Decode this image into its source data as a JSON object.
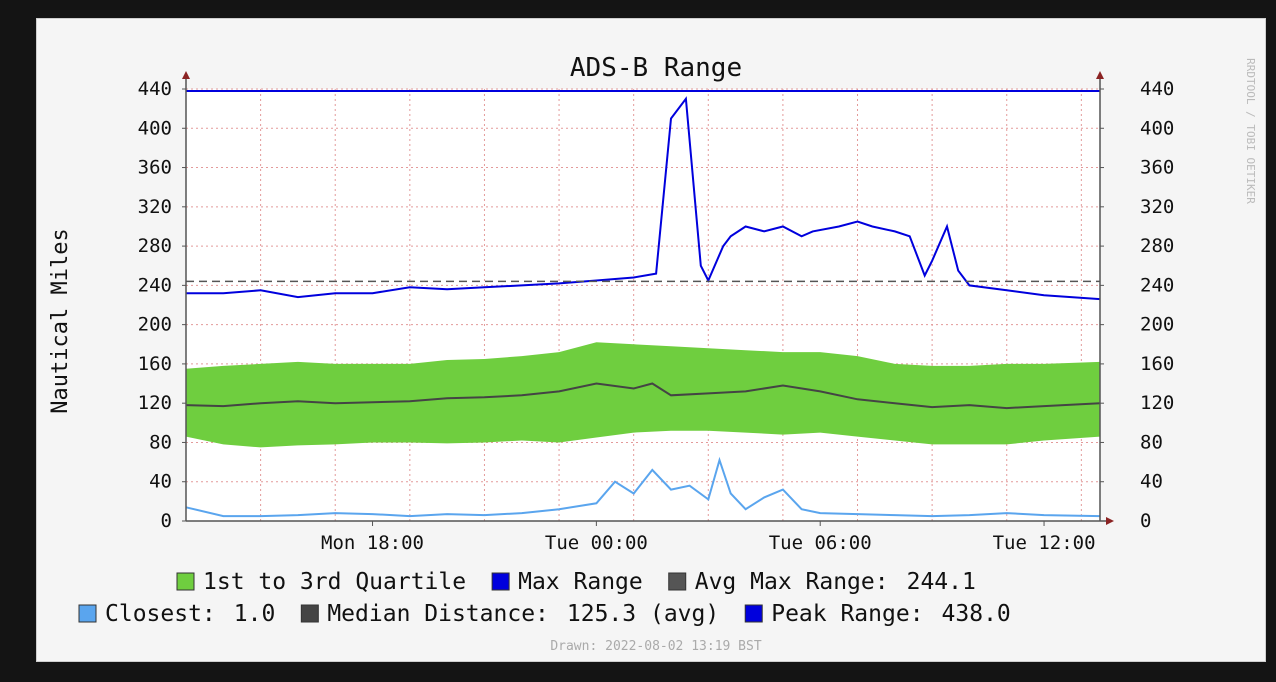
{
  "chart_data": {
    "type": "line",
    "title": "ADS-B Range",
    "ylabel": "Nautical Miles",
    "xlabel": "",
    "ylim": [
      0,
      440
    ],
    "yticks": [
      0,
      40,
      80,
      120,
      160,
      200,
      240,
      280,
      320,
      360,
      400,
      440
    ],
    "xlim_hours": [
      -5,
      19.5
    ],
    "xticks": [
      {
        "label": "Mon 18:00",
        "h": 0
      },
      {
        "label": "Tue 00:00",
        "h": 6
      },
      {
        "label": "Tue 06:00",
        "h": 12
      },
      {
        "label": "Tue 12:00",
        "h": 18
      }
    ],
    "right_axis": true,
    "grid": true,
    "side_text": "RRDTOOL / TOBI OETIKER",
    "footer": "Drawn: 2022-08-02 13:19 BST",
    "series": [
      {
        "name": "1st to 3rd Quartile",
        "color": "#6fce3f",
        "kind": "band",
        "x": [
          -5,
          -4,
          -3,
          -2,
          -1,
          0,
          1,
          2,
          3,
          4,
          5,
          6,
          7,
          8,
          9,
          10,
          11,
          12,
          13,
          14,
          15,
          16,
          17,
          18,
          19.5
        ],
        "low": [
          86,
          78,
          75,
          77,
          78,
          80,
          80,
          79,
          80,
          82,
          80,
          85,
          90,
          92,
          92,
          90,
          88,
          90,
          86,
          82,
          78,
          78,
          78,
          82,
          86
        ],
        "high": [
          155,
          158,
          160,
          162,
          160,
          160,
          160,
          164,
          165,
          168,
          172,
          182,
          180,
          178,
          176,
          174,
          172,
          172,
          168,
          160,
          158,
          158,
          160,
          160,
          162
        ]
      },
      {
        "name": "Median Distance",
        "color": "#444444",
        "kind": "line",
        "x": [
          -5,
          -4,
          -3,
          -2,
          -1,
          0,
          1,
          2,
          3,
          4,
          5,
          6,
          7,
          7.5,
          8,
          9,
          10,
          11,
          12,
          13,
          14,
          15,
          16,
          17,
          18,
          19.5
        ],
        "y": [
          118,
          117,
          120,
          122,
          120,
          121,
          122,
          125,
          126,
          128,
          132,
          140,
          135,
          140,
          128,
          130,
          132,
          138,
          132,
          124,
          120,
          116,
          118,
          115,
          117,
          120
        ]
      },
      {
        "name": "Max Range",
        "color": "#0000dd",
        "kind": "line",
        "x": [
          -5,
          -4,
          -3,
          -2,
          -1,
          0,
          1,
          2,
          3,
          4,
          5,
          6,
          7,
          7.6,
          8.0,
          8.4,
          8.8,
          9.0,
          9.4,
          9.6,
          10,
          10.5,
          11,
          11.5,
          11.8,
          12.5,
          13,
          13.4,
          14,
          14.4,
          14.8,
          15,
          15.4,
          15.7,
          16,
          17,
          18,
          19.5
        ],
        "y": [
          232,
          232,
          235,
          228,
          232,
          232,
          238,
          236,
          238,
          240,
          242,
          245,
          248,
          252,
          410,
          430,
          260,
          245,
          280,
          290,
          300,
          295,
          300,
          290,
          295,
          300,
          305,
          300,
          295,
          290,
          250,
          265,
          300,
          255,
          240,
          235,
          230,
          226
        ]
      },
      {
        "name": "Closest",
        "color": "#5aa5ee",
        "kind": "line",
        "x": [
          -5,
          -4,
          -3,
          -2,
          -1,
          0,
          1,
          2,
          3,
          4,
          5,
          6,
          6.5,
          7,
          7.5,
          8,
          8.5,
          9,
          9.3,
          9.6,
          10,
          10.5,
          11,
          11.5,
          12,
          13,
          14,
          15,
          16,
          17,
          18,
          19.5
        ],
        "y": [
          14,
          5,
          5,
          6,
          8,
          7,
          5,
          7,
          6,
          8,
          12,
          18,
          40,
          28,
          52,
          32,
          36,
          22,
          62,
          28,
          12,
          24,
          32,
          12,
          8,
          7,
          6,
          5,
          6,
          8,
          6,
          5
        ]
      },
      {
        "name": "Avg Max Range",
        "color": "#555555",
        "kind": "hline",
        "value": 244.1
      },
      {
        "name": "Peak Range",
        "color": "#0000dd",
        "kind": "hline",
        "value": 438.0
      }
    ]
  },
  "legend": {
    "row1": [
      {
        "label": "1st to 3rd Quartile",
        "color": "#6fce3f",
        "value": ""
      },
      {
        "label": "Max Range",
        "color": "#0000dd",
        "value": ""
      },
      {
        "label": "Avg Max Range:",
        "color": "#555555",
        "value": "244.1"
      }
    ],
    "row2": [
      {
        "label": "Closest:",
        "color": "#5aa5ee",
        "value": "1.0"
      },
      {
        "label": "Median Distance:",
        "color": "#444444",
        "value": "125.3 (avg)"
      },
      {
        "label": "Peak Range:",
        "color": "#0000dd",
        "value": "438.0"
      }
    ]
  }
}
